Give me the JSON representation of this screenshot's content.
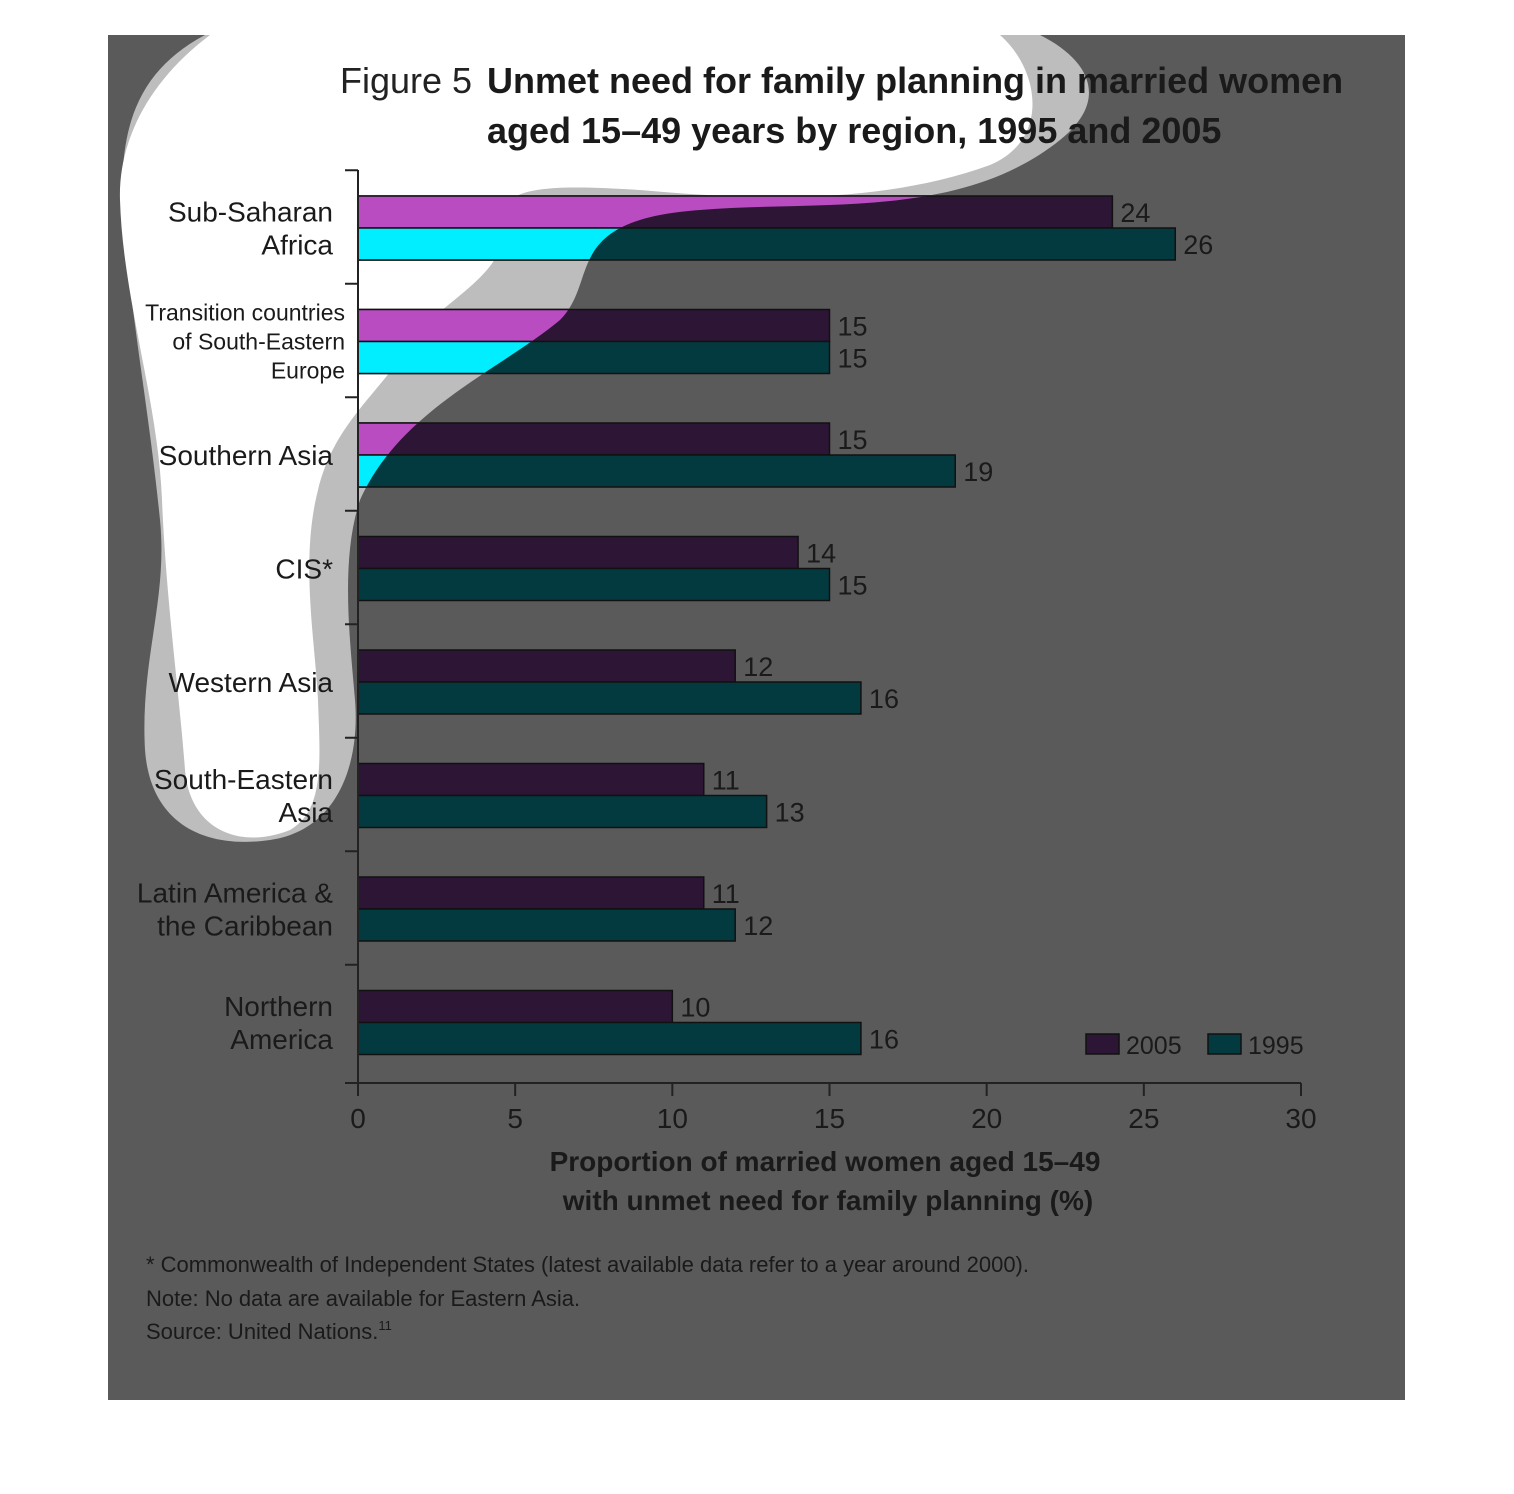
{
  "chart_data": {
    "type": "bar",
    "orientation": "horizontal",
    "figure_label": "Figure 5",
    "title_lines": [
      "Unmet need for family planning in married women",
      "aged 15–49 years by region, 1995 and 2005"
    ],
    "categories": [
      [
        "Sub-Saharan",
        "Africa"
      ],
      [
        "Transition countries",
        "of South-Eastern",
        "Europe"
      ],
      [
        "Southern Asia"
      ],
      [
        "CIS*"
      ],
      [
        "Western Asia"
      ],
      [
        "South-Eastern",
        "Asia"
      ],
      [
        "Latin America &",
        "the Caribbean"
      ],
      [
        "Northern",
        "America"
      ]
    ],
    "series": [
      {
        "name": "2005",
        "color": "#2d1535",
        "values": [
          24,
          15,
          15,
          14,
          12,
          11,
          11,
          10
        ]
      },
      {
        "name": "1995",
        "color": "#033a40",
        "values": [
          26,
          15,
          19,
          15,
          16,
          13,
          12,
          16
        ]
      }
    ],
    "highlight_colors": {
      "2005": "#b84cc0",
      "1995": "#00eeff"
    },
    "xlabel_lines": [
      "Proportion of married women aged 15–49",
      "with unmet need for family planning (%)"
    ],
    "xlim": [
      0,
      30
    ],
    "xticks": [
      0,
      5,
      10,
      15,
      20,
      25,
      30
    ],
    "legend_position": "bottom-right",
    "grid": false,
    "notes": [
      "* Commonwealth of Independent States (latest available data refer to a year around 2000).",
      "Note: No data are available for Eastern Asia.",
      "Source: United Nations."
    ],
    "source_superscript": "11"
  }
}
